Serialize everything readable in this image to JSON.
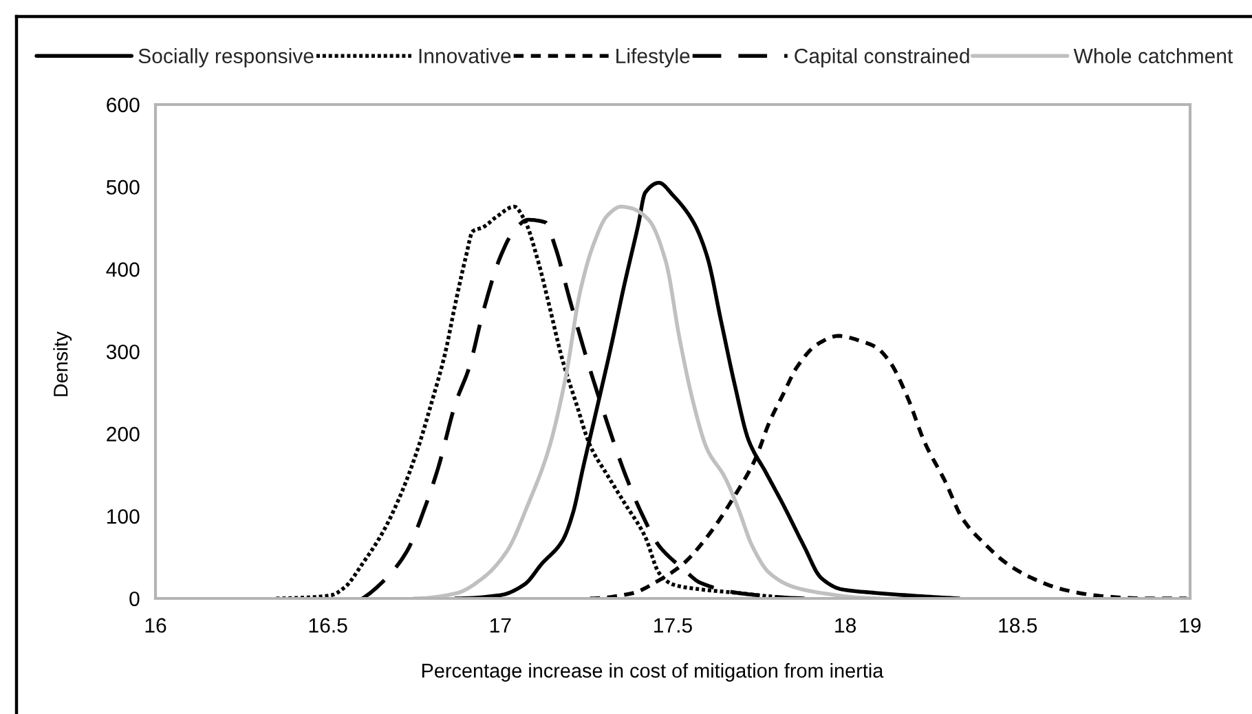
{
  "chart_data": {
    "type": "line",
    "xlabel": "Percentage increase in cost of mitigation from inertia",
    "ylabel": "Density",
    "xlim": [
      16,
      19
    ],
    "xticks": [
      16,
      16.5,
      17,
      17.5,
      18,
      18.5,
      19
    ],
    "ylim": [
      0,
      600
    ],
    "yticks": [
      0,
      100,
      200,
      300,
      400,
      500,
      600
    ],
    "legend": "top",
    "series": [
      {
        "name": "Socially responsive",
        "color": "#000000",
        "line_style": "solid",
        "x": [
          16.87,
          17.0,
          17.07,
          17.12,
          17.18,
          17.21,
          17.24,
          17.28,
          17.32,
          17.36,
          17.4,
          17.42,
          17.46,
          17.5,
          17.56,
          17.6,
          17.64,
          17.68,
          17.72,
          17.77,
          17.82,
          17.88,
          17.93,
          17.99,
          18.08,
          18.21,
          18.33
        ],
        "values": [
          0,
          4,
          17,
          42,
          70,
          103,
          159,
          231,
          304,
          382,
          454,
          493,
          505,
          490,
          457,
          415,
          337,
          259,
          192,
          153,
          114,
          64,
          25,
          11,
          7,
          3,
          0
        ]
      },
      {
        "name": "Innovative",
        "color": "#000000",
        "line_style": "dotted",
        "x": [
          16.35,
          16.43,
          16.51,
          16.55,
          16.6,
          16.66,
          16.71,
          16.76,
          16.8,
          16.84,
          16.87,
          16.9,
          16.92,
          16.95,
          16.99,
          17.04,
          17.07,
          17.11,
          17.14,
          17.18,
          17.22,
          17.26,
          17.31,
          17.36,
          17.42,
          17.46,
          17.5,
          17.58,
          17.68,
          17.77,
          17.84
        ],
        "values": [
          0,
          1,
          4,
          14,
          42,
          81,
          125,
          181,
          237,
          298,
          359,
          415,
          446,
          451,
          464,
          476,
          460,
          409,
          359,
          290,
          237,
          186,
          150,
          116,
          75,
          31,
          17,
          11,
          7,
          3,
          0
        ]
      },
      {
        "name": "Lifestyle",
        "color": "#000000",
        "line_style": "dashed",
        "x": [
          17.26,
          17.38,
          17.46,
          17.53,
          17.6,
          17.68,
          17.74,
          17.78,
          17.82,
          17.86,
          17.92,
          17.98,
          18.05,
          18.09,
          18.13,
          18.18,
          18.23,
          18.29,
          18.34,
          18.41,
          18.47,
          18.54,
          18.63,
          18.74,
          18.87,
          18.99
        ],
        "values": [
          0,
          6,
          22,
          42,
          75,
          125,
          170,
          214,
          248,
          281,
          309,
          319,
          312,
          305,
          287,
          245,
          190,
          142,
          97,
          64,
          42,
          25,
          11,
          3,
          0,
          0
        ]
      },
      {
        "name": "Capital constrained",
        "color": "#000000",
        "line_style": "dashed",
        "x": [
          16.6,
          16.67,
          16.73,
          16.78,
          16.82,
          16.87,
          16.91,
          16.95,
          17.0,
          17.04,
          17.08,
          17.13,
          17.16,
          17.2,
          17.25,
          17.3,
          17.36,
          17.41,
          17.46,
          17.53,
          17.58,
          17.7,
          17.9
        ],
        "values": [
          0,
          25,
          58,
          109,
          159,
          237,
          281,
          348,
          415,
          447,
          460,
          457,
          426,
          365,
          292,
          226,
          153,
          103,
          64,
          36,
          19,
          6,
          0
        ]
      },
      {
        "name": "Whole catchment",
        "color": "#c0c0c0",
        "line_style": "solid",
        "x": [
          16.75,
          16.87,
          16.95,
          17.02,
          17.08,
          17.14,
          17.19,
          17.23,
          17.27,
          17.31,
          17.35,
          17.38,
          17.43,
          17.48,
          17.52,
          17.56,
          17.6,
          17.65,
          17.69,
          17.73,
          17.78,
          17.85,
          17.94,
          18.04,
          18.1
        ],
        "values": [
          0,
          6,
          25,
          58,
          114,
          181,
          270,
          370,
          430,
          465,
          476,
          474,
          460,
          409,
          315,
          237,
          181,
          148,
          109,
          64,
          31,
          14,
          6,
          1,
          0
        ]
      }
    ]
  }
}
